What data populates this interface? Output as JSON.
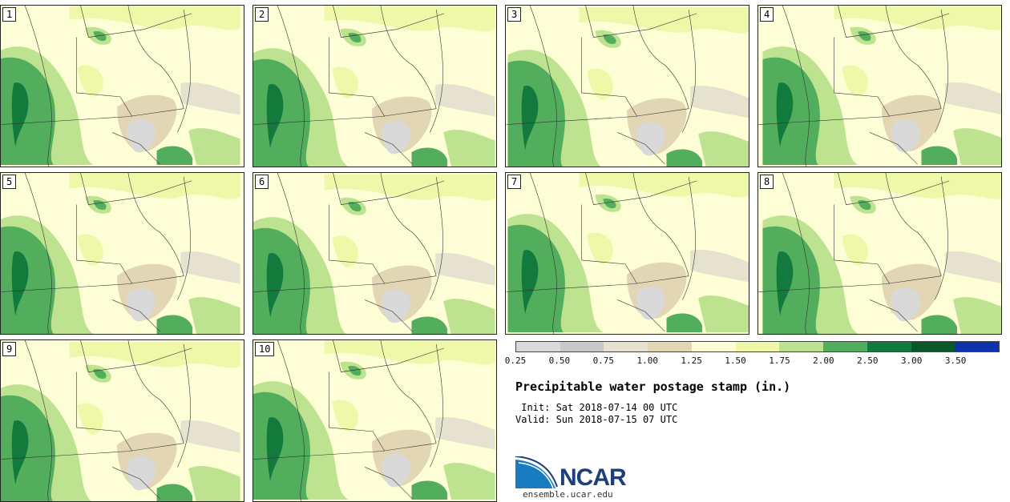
{
  "panels": [
    {
      "label": "1"
    },
    {
      "label": "2"
    },
    {
      "label": "3"
    },
    {
      "label": "4"
    },
    {
      "label": "5"
    },
    {
      "label": "6"
    },
    {
      "label": "7"
    },
    {
      "label": "8"
    },
    {
      "label": "9"
    },
    {
      "label": "10"
    }
  ],
  "legend": {
    "colors": [
      "#d9d9d9",
      "#c8c8c8",
      "#e6e2d0",
      "#e2d6b4",
      "#fdfdd6",
      "#eef8a8",
      "#bde290",
      "#52ad5c",
      "#127a3c",
      "#0b5727",
      "#1032ad"
    ],
    "ticks": [
      "0.25",
      "0.50",
      "0.75",
      "1.00",
      "1.25",
      "1.50",
      "1.75",
      "2.00",
      "2.50",
      "3.00",
      "3.50"
    ]
  },
  "title": "Precipitable water postage stamp (in.)",
  "init_line": " Init: Sat 2018-07-14 00 UTC",
  "valid_line": "Valid: Sun 2018-07-15 07 UTC",
  "logo": {
    "name": "NCAR",
    "url": "ensemble.ucar.edu"
  }
}
